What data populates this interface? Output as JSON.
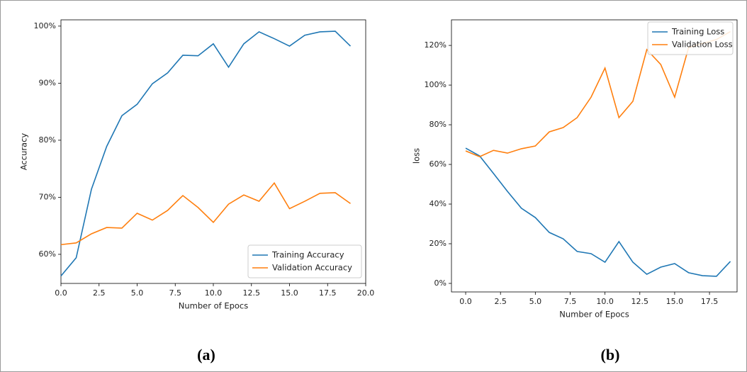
{
  "chart_data": [
    {
      "type": "line",
      "caption": "(a)",
      "xlabel": "Number of Epocs",
      "ylabel": "Accuracy",
      "x": [
        0,
        1,
        2,
        3,
        4,
        5,
        6,
        7,
        8,
        9,
        10,
        11,
        12,
        13,
        14,
        15,
        16,
        17,
        18,
        19
      ],
      "series": [
        {
          "name": "Training Accuracy",
          "color": "#1f77b4",
          "values": [
            56.2,
            59.4,
            71.4,
            78.9,
            84.3,
            86.3,
            89.9,
            91.8,
            94.9,
            94.8,
            96.9,
            92.8,
            96.9,
            99.0,
            97.8,
            96.5,
            98.4,
            99.0,
            99.1,
            96.5
          ]
        },
        {
          "name": "Validation Accuracy",
          "color": "#ff7f0e",
          "values": [
            61.7,
            62.0,
            63.6,
            64.7,
            64.6,
            67.2,
            66.0,
            67.7,
            70.3,
            68.2,
            65.6,
            68.8,
            70.4,
            69.3,
            72.5,
            68.0,
            69.3,
            70.7,
            70.8,
            68.9
          ]
        }
      ],
      "xlim": [
        0,
        20
      ],
      "ylim": [
        54.9,
        101.1
      ],
      "xticks": [
        {
          "value": 0,
          "label": "0.0"
        },
        2.5,
        {
          "value": 5,
          "label": "5.0"
        },
        7.5,
        {
          "value": 10,
          "label": "10.0"
        },
        12.5,
        {
          "value": 15,
          "label": "15.0"
        },
        17.5,
        {
          "value": 20,
          "label": "20.0"
        }
      ],
      "yticks": [
        {
          "value": 60,
          "label": "60%"
        },
        {
          "value": 70,
          "label": "70%"
        },
        {
          "value": 80,
          "label": "80%"
        },
        {
          "value": 90,
          "label": "90%"
        },
        {
          "value": 100,
          "label": "100%"
        }
      ],
      "legend": "lower right"
    },
    {
      "type": "line",
      "caption": "(b)",
      "xlabel": "Number of Epocs",
      "ylabel": "loss",
      "x": [
        0,
        1,
        2,
        3,
        4,
        5,
        6,
        7,
        8,
        9,
        10,
        11,
        12,
        13,
        14,
        15,
        16,
        17,
        18,
        19
      ],
      "series": [
        {
          "name": "Training Loss",
          "color": "#1f77b4",
          "values": [
            68.2,
            64.3,
            55.4,
            46.4,
            37.9,
            33.2,
            25.7,
            22.5,
            16.1,
            15.0,
            10.7,
            21.1,
            10.7,
            4.6,
            8.2,
            10.0,
            5.4,
            3.9,
            3.6,
            11.1
          ]
        },
        {
          "name": "Validation Loss",
          "color": "#ff7f0e",
          "values": [
            66.8,
            63.9,
            67.1,
            65.7,
            67.9,
            69.3,
            76.4,
            78.6,
            83.6,
            93.9,
            108.6,
            83.6,
            91.8,
            117.9,
            110.4,
            93.9,
            118.9,
            121,
            123,
            127
          ]
        }
      ],
      "xlim": [
        -1.02,
        19.48
      ],
      "ylim": [
        -4.3,
        132.9
      ],
      "xticks": [
        {
          "value": 0,
          "label": "0.0"
        },
        2.5,
        {
          "value": 5,
          "label": "5.0"
        },
        7.5,
        {
          "value": 10,
          "label": "10.0"
        },
        12.5,
        {
          "value": 15,
          "label": "15.0"
        },
        17.5
      ],
      "yticks": [
        {
          "value": 0,
          "label": "0%"
        },
        {
          "value": 20,
          "label": "20%"
        },
        {
          "value": 40,
          "label": "40%"
        },
        {
          "value": 60,
          "label": "60%"
        },
        {
          "value": 80,
          "label": "80%"
        },
        {
          "value": 100,
          "label": "100%"
        },
        {
          "value": 120,
          "label": "120%"
        }
      ],
      "legend": "upper right"
    }
  ]
}
